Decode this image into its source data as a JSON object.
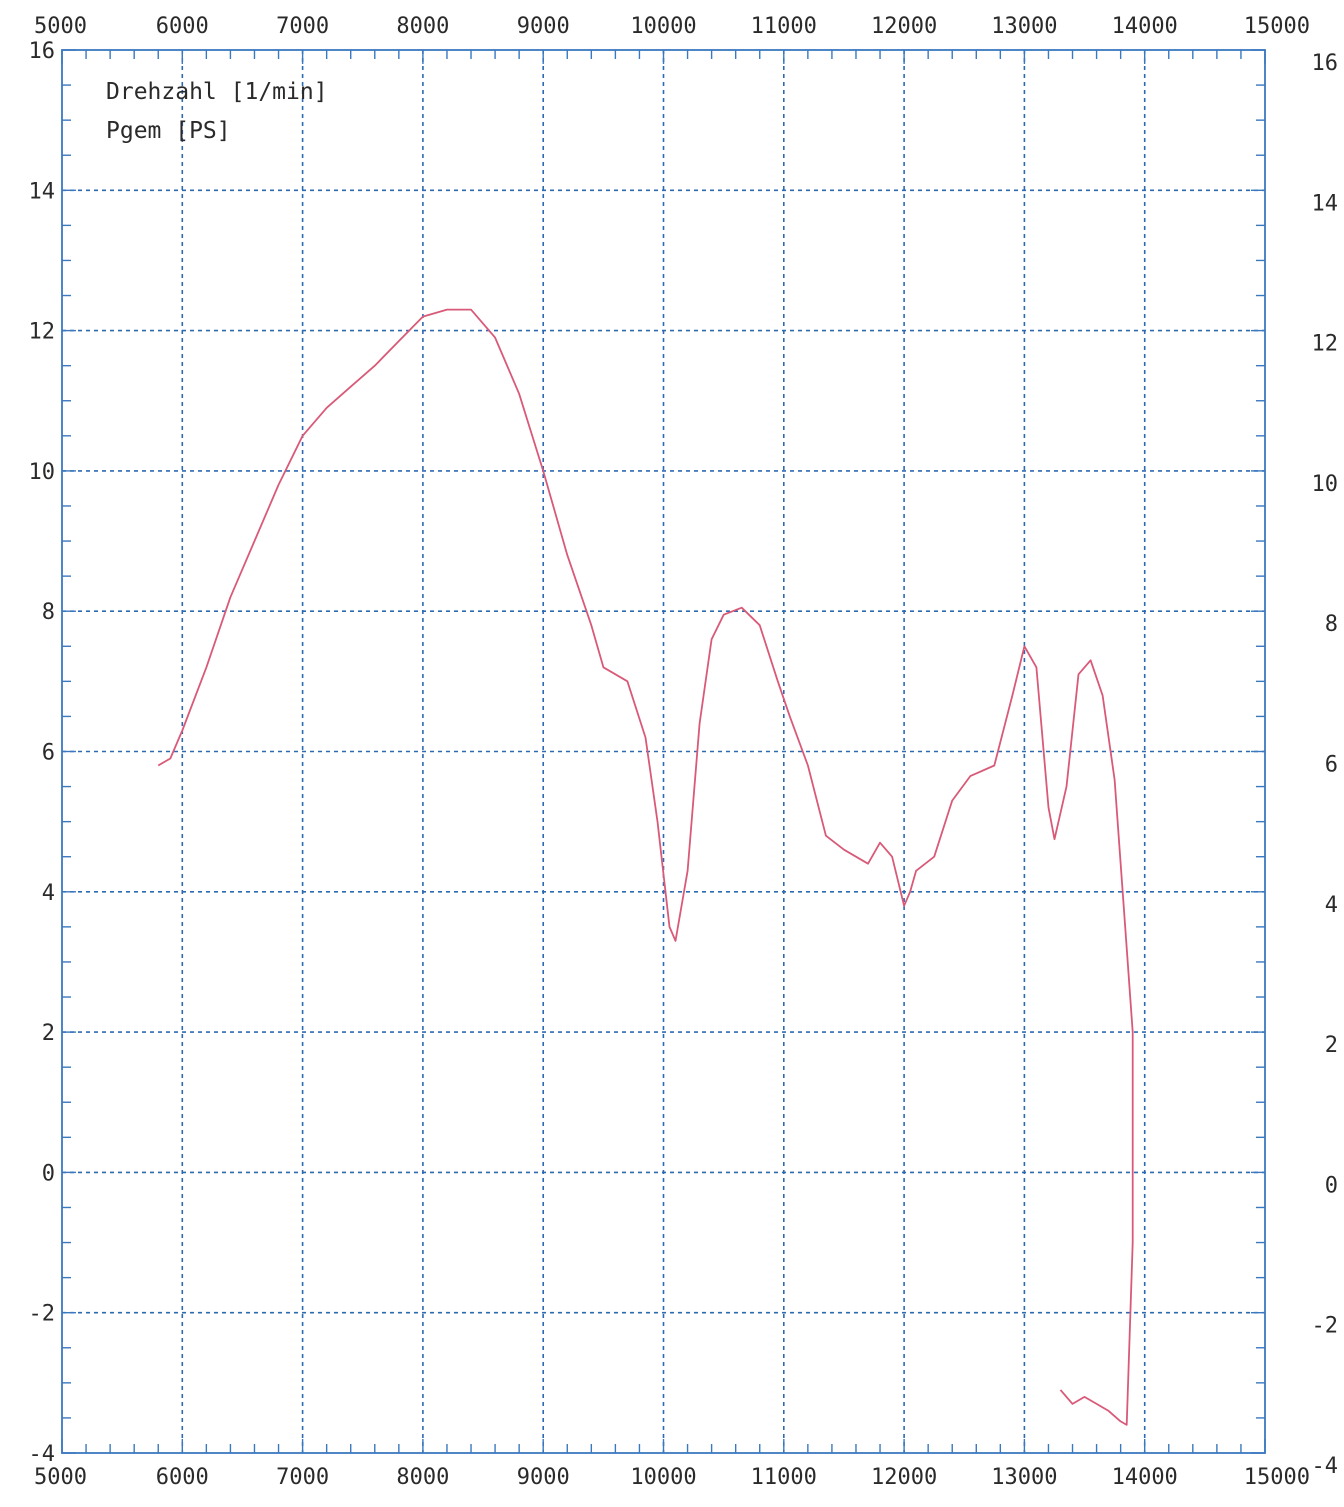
{
  "chart_data": {
    "type": "line",
    "title": "",
    "x_axis": {
      "range": [
        5000,
        15000
      ],
      "ticks": [
        "5000",
        "6000",
        "7000",
        "8000",
        "9000",
        "10000",
        "11000",
        "12000",
        "13000",
        "14000",
        "15000"
      ],
      "shown_top": true,
      "shown_bottom": true
    },
    "y_axis": {
      "range": [
        -4,
        16
      ],
      "ticks": [
        "-4",
        "-2",
        "0",
        "2",
        "4",
        "6",
        "8",
        "10",
        "12",
        "14",
        "16"
      ],
      "shown_left": true,
      "shown_right": true
    },
    "grid": true,
    "grid_style": "dashed",
    "grid_color": "#2e6ab0",
    "frame_color": "#3a78c0",
    "legend": {
      "position": "top-left",
      "entries": [
        "Drehzahl [1/min]",
        "Pgem [PS]"
      ]
    },
    "series": [
      {
        "color": "#d95a78",
        "points": [
          [
            5800,
            5.8
          ],
          [
            5900,
            5.9
          ],
          [
            6000,
            6.3
          ],
          [
            6200,
            7.2
          ],
          [
            6400,
            8.2
          ],
          [
            6600,
            9.0
          ],
          [
            6800,
            9.8
          ],
          [
            7000,
            10.5
          ],
          [
            7200,
            10.9
          ],
          [
            7400,
            11.2
          ],
          [
            7600,
            11.5
          ],
          [
            7800,
            11.85
          ],
          [
            8000,
            12.2
          ],
          [
            8200,
            12.3
          ],
          [
            8400,
            12.3
          ],
          [
            8600,
            11.9
          ],
          [
            8800,
            11.1
          ],
          [
            9000,
            10.0
          ],
          [
            9200,
            8.8
          ],
          [
            9400,
            7.8
          ],
          [
            9500,
            7.2
          ],
          [
            9700,
            7.0
          ],
          [
            9850,
            6.2
          ],
          [
            9950,
            5.0
          ],
          [
            10050,
            3.5
          ],
          [
            10100,
            3.3
          ],
          [
            10200,
            4.3
          ],
          [
            10300,
            6.4
          ],
          [
            10400,
            7.6
          ],
          [
            10500,
            7.95
          ],
          [
            10650,
            8.05
          ],
          [
            10800,
            7.8
          ],
          [
            10950,
            7.0
          ],
          [
            11050,
            6.5
          ],
          [
            11200,
            5.8
          ],
          [
            11350,
            4.8
          ],
          [
            11500,
            4.6
          ],
          [
            11700,
            4.4
          ],
          [
            11800,
            4.7
          ],
          [
            11900,
            4.5
          ],
          [
            12000,
            3.8
          ],
          [
            12050,
            4.0
          ],
          [
            12100,
            4.3
          ],
          [
            12250,
            4.5
          ],
          [
            12400,
            5.3
          ],
          [
            12550,
            5.65
          ],
          [
            12750,
            5.8
          ],
          [
            12900,
            6.8
          ],
          [
            13000,
            7.5
          ],
          [
            13100,
            7.2
          ],
          [
            13200,
            5.2
          ],
          [
            13250,
            4.75
          ],
          [
            13350,
            5.5
          ],
          [
            13450,
            7.1
          ],
          [
            13550,
            7.3
          ],
          [
            13650,
            6.8
          ],
          [
            13750,
            5.6
          ],
          [
            13850,
            3.2
          ],
          [
            13900,
            2.0
          ],
          [
            13900,
            -1.0
          ],
          [
            13850,
            -3.6
          ],
          [
            13800,
            -3.55
          ],
          [
            13700,
            -3.4
          ],
          [
            13600,
            -3.3
          ],
          [
            13500,
            -3.2
          ],
          [
            13400,
            -3.3
          ],
          [
            13300,
            -3.1
          ]
        ]
      }
    ]
  }
}
